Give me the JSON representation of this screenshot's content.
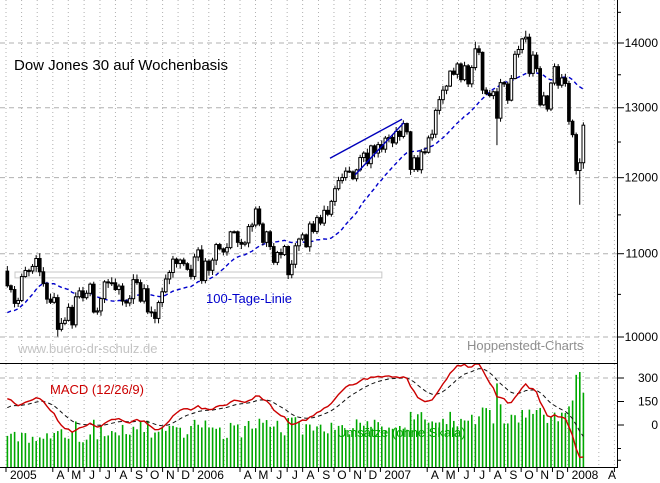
{
  "title": "Dow Jones 30 auf Wochenbasis",
  "watermarks": {
    "left": "www.buero-dr-schulz.de",
    "right": "Hoppenstedt-Charts"
  },
  "labels": {
    "ma": "100-Tage-Linie",
    "macd": "MACD (12/26/9)",
    "volume": "Umsätze (ohne Skala)"
  },
  "colors": {
    "up_candle": "#ffffff",
    "down_candle": "#000000",
    "candle_outline": "#000000",
    "ma_line": "#0000cc",
    "trend_line": "#0000bb",
    "macd_line": "#cc0000",
    "signal_line": "#111111",
    "volume_bars": "#00a800",
    "grid": "#b0b0b0",
    "range_box_stroke": "#c8c8c8",
    "range_box_fill": "#ffffff",
    "watermark_left": "#c4c4c4",
    "watermark_right": "#8f8f8f",
    "axis": "#000000"
  },
  "axes": {
    "price": {
      "scale": "log",
      "labeled_ticks": [
        10000,
        11000,
        12000,
        13000,
        14000
      ],
      "minor_tick_step": 500,
      "tick_min": 10000,
      "tick_max": 14500,
      "visible_range": [
        9707,
        14707
      ]
    },
    "macd": {
      "labeled_ticks": [
        300,
        150,
        0
      ],
      "unlabeled_ticks": [
        -150,
        -225
      ],
      "gridline_at": 300,
      "visible_range": [
        -268,
        396
      ]
    },
    "x": {
      "year_labels": [
        "2005",
        "2006",
        "2007",
        "2008"
      ],
      "month_letters": [
        "A",
        "M",
        "J",
        "J",
        "A",
        "S",
        "O",
        "N",
        "D"
      ],
      "trailing_month_label": "A"
    }
  },
  "chart_data": [
    {
      "type": "candlestick",
      "title": "Dow Jones 30, weekly, Jan 2005 - Feb 2008, log scale",
      "frequency": "weekly",
      "start": "2005-01",
      "closes": [
        10604,
        10558,
        10392,
        10427,
        10716,
        10791,
        10785,
        10841,
        10940,
        10775,
        10630,
        10443,
        10405,
        10461,
        10088,
        10157,
        10192,
        10345,
        10140,
        10471,
        10542,
        10460,
        10513,
        10623,
        10290,
        10303,
        10449,
        10651,
        10641,
        10640,
        10558,
        10600,
        10419,
        10397,
        10448,
        10679,
        10642,
        10419,
        10568,
        10292,
        10287,
        10215,
        10402,
        10531,
        10686,
        10766,
        10932,
        10878,
        10921,
        10875,
        10805,
        10718,
        10959,
        11048,
        10667,
        10907,
        10793,
        10920,
        11116,
        11061,
        11022,
        11077,
        11279,
        11280,
        11144,
        11120,
        11137,
        11347,
        11367,
        11578,
        11380,
        11144,
        11279,
        11090,
        10892,
        11015,
        10989,
        11091,
        10739,
        10868,
        11100,
        11186,
        11240,
        11088,
        11381,
        11284,
        11464,
        11392,
        11560,
        11508,
        11679,
        11850,
        11960,
        12002,
        12090,
        12080,
        11986,
        12108,
        12280,
        12342,
        12194,
        12445,
        12343,
        12463,
        12398,
        12556,
        12565,
        12487,
        12653,
        12580,
        12767,
        12647,
        12114,
        12276,
        12110,
        12361,
        12354,
        12560,
        12612,
        12961,
        13121,
        13264,
        13326,
        13557,
        13507,
        13668,
        13424,
        13639,
        13360,
        13612,
        13907,
        13851,
        13265,
        13212,
        13182,
        13240,
        12846,
        13379,
        13358,
        13113,
        13442,
        13820,
        13896,
        14066,
        14093,
        13522,
        13807,
        13595,
        13043,
        13177,
        12981,
        13372,
        13626,
        13340,
        13451,
        13366,
        12800,
        12606,
        12099,
        12207,
        12743
      ],
      "wick_overrides": {
        "14": {
          "low": 10006
        },
        "112": {
          "low": 12039
        },
        "130": {
          "high": 14021
        },
        "136": {
          "low": 12455
        },
        "144": {
          "high": 14198
        },
        "159": {
          "low": 11634
        },
        "160": {
          "low": 12125
        }
      },
      "warmup_closes": [
        10140,
        10213,
        9962,
        10110,
        9815,
        9825,
        9948,
        10174,
        10204,
        10244,
        10047,
        9965,
        10048,
        9749,
        9933,
        9757,
        9888,
        10027,
        10387,
        10539,
        10456,
        10592,
        10543,
        10440,
        10634,
        10827,
        10783
      ],
      "overlays": {
        "ma100_weeks": 20,
        "trend_channel": [
          {
            "from_week": 90,
            "from_price": 12270,
            "to_week": 110,
            "to_price": 12830
          },
          {
            "from_week": 97,
            "from_price": 12040,
            "to_week": 110.5,
            "to_price": 12780
          }
        ],
        "range_box": {
          "weeks": [
            2.5,
            104.4
          ],
          "price": [
            10700,
            10772
          ]
        }
      }
    },
    {
      "type": "macd",
      "params": [
        12,
        26,
        9
      ],
      "computed_from": "closes with warmup"
    },
    {
      "type": "volume_bars",
      "note": "ohne Skala - relative heights only",
      "base_start": 0.2,
      "base_end": 0.4,
      "jitter": 0.16,
      "spikes": {
        "79": 0.52,
        "83": 0.45,
        "112": 0.58,
        "116": 0.5,
        "129": 0.55,
        "133": 0.62,
        "134": 0.6,
        "136": 0.88,
        "137": 0.66,
        "140": 0.55,
        "143": 0.6,
        "144": 0.52,
        "147": 0.6,
        "149": 0.55,
        "152": 0.5,
        "156": 0.62,
        "157": 0.7,
        "158": 0.97,
        "159": 1.0,
        "160": 0.78
      }
    }
  ]
}
